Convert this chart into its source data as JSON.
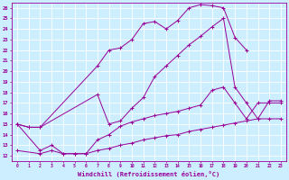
{
  "xlabel": "Windchill (Refroidissement éolien,°C)",
  "bg_color": "#cceeff",
  "line_color": "#990099",
  "grid_color": "#ffffff",
  "xlim": [
    -0.5,
    23.5
  ],
  "ylim": [
    11.5,
    26.5
  ],
  "yticks": [
    12,
    13,
    14,
    15,
    16,
    17,
    18,
    19,
    20,
    21,
    22,
    23,
    24,
    25,
    26
  ],
  "xticks": [
    0,
    1,
    2,
    3,
    4,
    5,
    6,
    7,
    8,
    9,
    10,
    11,
    12,
    13,
    14,
    15,
    16,
    17,
    18,
    19,
    20,
    21,
    22,
    23
  ],
  "lines": [
    {
      "x": [
        0,
        1,
        2,
        7,
        8,
        9,
        10,
        11,
        12,
        13,
        14,
        15,
        16,
        17,
        18,
        19,
        20
      ],
      "y": [
        15,
        14.7,
        14.7,
        20.5,
        22.0,
        22.2,
        23.0,
        24.5,
        24.7,
        24.0,
        24.8,
        26.0,
        26.3,
        26.2,
        26.0,
        23.2,
        22.0
      ]
    },
    {
      "x": [
        0,
        1,
        2,
        7,
        8,
        9,
        10,
        11,
        12,
        13,
        14,
        15,
        16,
        17,
        18,
        19,
        20,
        21,
        22,
        23
      ],
      "y": [
        15,
        14.7,
        14.7,
        17.8,
        15.0,
        15.3,
        16.5,
        17.5,
        19.5,
        20.5,
        21.5,
        22.5,
        23.3,
        24.2,
        25.0,
        18.5,
        17.0,
        15.5,
        17.2,
        17.2
      ]
    },
    {
      "x": [
        0,
        2,
        3,
        4,
        5,
        6,
        7,
        8,
        9,
        10,
        11,
        12,
        13,
        14,
        15,
        16,
        17,
        18,
        19,
        20,
        21,
        22,
        23
      ],
      "y": [
        15,
        12.5,
        13.0,
        12.2,
        12.2,
        12.2,
        13.5,
        14.0,
        14.8,
        15.2,
        15.5,
        15.8,
        16.0,
        16.2,
        16.5,
        16.8,
        18.2,
        18.5,
        17.0,
        15.5,
        17.0,
        17.0,
        17.0
      ]
    },
    {
      "x": [
        0,
        2,
        3,
        4,
        5,
        6,
        7,
        8,
        9,
        10,
        11,
        12,
        13,
        14,
        15,
        16,
        17,
        18,
        19,
        20,
        21,
        22,
        23
      ],
      "y": [
        12.5,
        12.2,
        12.5,
        12.2,
        12.2,
        12.2,
        12.5,
        12.7,
        13.0,
        13.2,
        13.5,
        13.7,
        13.9,
        14.0,
        14.3,
        14.5,
        14.7,
        14.9,
        15.1,
        15.3,
        15.5,
        15.5,
        15.5
      ]
    }
  ]
}
